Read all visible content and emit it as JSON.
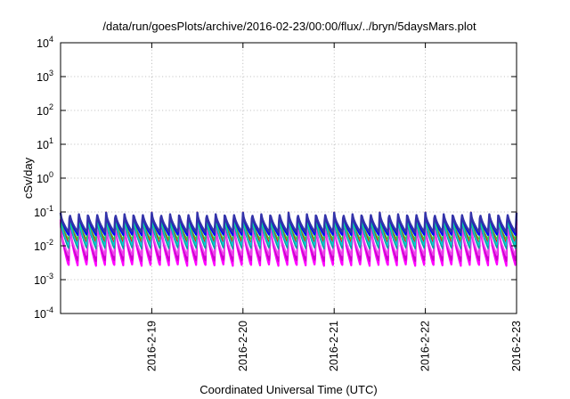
{
  "chart_data": {
    "type": "line",
    "title": "/data/run/goesPlots/archive/2016-02-23/00:00/flux/../bryn/5daysMars.plot",
    "xlabel": "Coordinated Universal Time (UTC)",
    "ylabel": "cSv/day",
    "yscale": "log",
    "ylim": [
      0.0001,
      10000
    ],
    "xlim": [
      "2016-02-18 00:00",
      "2016-02-23 00:00"
    ],
    "grid": true,
    "y_ticks": [
      {
        "base": "10",
        "exp": "-4",
        "value": 0.0001
      },
      {
        "base": "10",
        "exp": "-3",
        "value": 0.001
      },
      {
        "base": "10",
        "exp": "-2",
        "value": 0.01
      },
      {
        "base": "10",
        "exp": "-1",
        "value": 0.1
      },
      {
        "base": "10",
        "exp": "0",
        "value": 1
      },
      {
        "base": "10",
        "exp": "1",
        "value": 10
      },
      {
        "base": "10",
        "exp": "2",
        "value": 100
      },
      {
        "base": "10",
        "exp": "3",
        "value": 1000
      },
      {
        "base": "10",
        "exp": "4",
        "value": 10000
      }
    ],
    "x_ticks": [
      {
        "label": "2016-2-19",
        "value": "2016-02-19 00:00"
      },
      {
        "label": "2016-2-20",
        "value": "2016-02-20 00:00"
      },
      {
        "label": "2016-2-21",
        "value": "2016-02-21 00:00"
      },
      {
        "label": "2016-2-22",
        "value": "2016-02-22 00:00"
      },
      {
        "label": "2016-2-23",
        "value": "2016-02-23 00:00"
      }
    ],
    "pattern": {
      "description_value_period_hours": 2.4,
      "peak": 0.1,
      "series": [
        {
          "color": "#ff0000",
          "peak": 0.1,
          "trough": 0.012,
          "width": 1.2
        },
        {
          "color": "#ff00ff",
          "peak": 0.06,
          "trough": 0.0025,
          "width": 2.2
        },
        {
          "color": "#cc00cc",
          "peak": 0.05,
          "trough": 0.0035,
          "width": 2.0
        },
        {
          "color": "#ee44ee",
          "peak": 0.04,
          "trough": 0.005,
          "width": 1.8
        },
        {
          "color": "#00a0a0",
          "peak": 0.07,
          "trough": 0.008,
          "width": 1.4
        },
        {
          "color": "#00cccc",
          "peak": 0.075,
          "trough": 0.01,
          "width": 1.4
        },
        {
          "color": "#33cc33",
          "peak": 0.085,
          "trough": 0.015,
          "width": 1.2
        },
        {
          "color": "#0000ff",
          "peak": 0.09,
          "trough": 0.02,
          "width": 1.8
        },
        {
          "color": "#3333aa",
          "peak": 0.095,
          "trough": 0.025,
          "width": 2.4
        }
      ]
    }
  }
}
